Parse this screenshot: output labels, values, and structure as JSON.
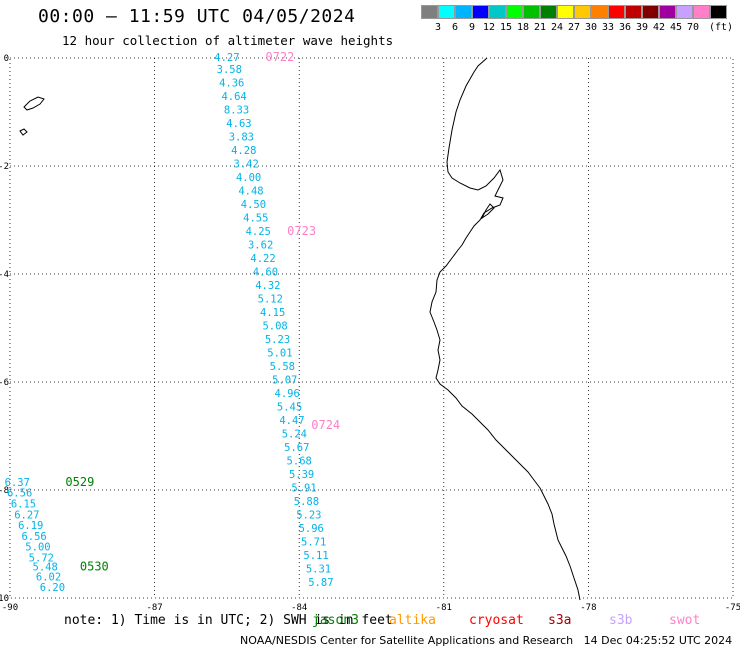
{
  "header": {
    "title": "00:00 – 11:59 UTC 04/05/2024",
    "subtitle": "12 hour collection of altimeter wave heights"
  },
  "legend": {
    "colors": [
      "#7f7f7f",
      "#00ffff",
      "#00b4ff",
      "#0000ff",
      "#00c8c8",
      "#00ff00",
      "#00c000",
      "#008000",
      "#ffff00",
      "#ffc800",
      "#ff8000",
      "#ff0000",
      "#c00000",
      "#800000",
      "#a000a0",
      "#c8a0ff",
      "#ff80c8",
      "#000000"
    ],
    "labels": [
      "3",
      "6",
      "9",
      "12",
      "15",
      "18",
      "21",
      "24",
      "27",
      "30",
      "33",
      "36",
      "39",
      "42",
      "45",
      "70"
    ],
    "unit": "(ft)"
  },
  "axes": {
    "lon_labels": [
      "-90",
      "-87",
      "-84",
      "-81",
      "-78",
      "-75"
    ],
    "lat_labels": [
      "0",
      "-2",
      "-4",
      "-6",
      "-8",
      "-10"
    ],
    "lon_values": [
      -90,
      -87,
      -84,
      -81,
      -78,
      -75
    ],
    "lat_values": [
      0,
      -2,
      -4,
      -6,
      -8,
      -10
    ]
  },
  "map_data": {
    "extent": {
      "lon": [
        -90,
        -75
      ],
      "lat": [
        -10,
        0
      ]
    },
    "tracks": [
      {
        "label": "0529",
        "label_lon": -88.85,
        "label_lat": -7.85,
        "label_color": "#008000",
        "points": [
          {
            "lon": -89.85,
            "lat": -7.85,
            "swh": "6.37"
          },
          {
            "lon": -89.8,
            "lat": -8.05,
            "swh": "6.56"
          },
          {
            "lon": -89.72,
            "lat": -8.25,
            "swh": "6.15"
          },
          {
            "lon": -89.65,
            "lat": -8.45,
            "swh": "6.27"
          },
          {
            "lon": -89.57,
            "lat": -8.65,
            "swh": "6.19"
          },
          {
            "lon": -89.5,
            "lat": -8.85,
            "swh": "6.56"
          },
          {
            "lon": -89.42,
            "lat": -9.05,
            "swh": "5.00"
          },
          {
            "lon": -89.35,
            "lat": -9.25,
            "swh": "5.72"
          },
          {
            "lon": -89.27,
            "lat": -9.42,
            "swh": "5.48"
          },
          {
            "lon": -89.2,
            "lat": -9.6,
            "swh": "6.02"
          },
          {
            "lon": -89.12,
            "lat": -9.8,
            "swh": "6.20"
          }
        ]
      },
      {
        "label": "0530",
        "label_lon": -88.55,
        "label_lat": -9.42,
        "label_color": "#008000",
        "points": []
      },
      {
        "label": "0722",
        "label_lon": -84.7,
        "label_lat": 0.02,
        "label_color": "#ff80c8",
        "points": [
          {
            "lon": -85.5,
            "lat": 0.02,
            "swh": "4.27"
          },
          {
            "lon": -85.45,
            "lat": -0.2,
            "swh": "3.58"
          },
          {
            "lon": -85.4,
            "lat": -0.45,
            "swh": "4.36"
          },
          {
            "lon": -85.35,
            "lat": -0.7,
            "swh": "4.64"
          },
          {
            "lon": -85.3,
            "lat": -0.95,
            "swh": "8.33"
          },
          {
            "lon": -85.25,
            "lat": -1.2,
            "swh": "4.63"
          },
          {
            "lon": -85.2,
            "lat": -1.45,
            "swh": "3.83"
          },
          {
            "lon": -85.15,
            "lat": -1.7,
            "swh": "4.28"
          },
          {
            "lon": -85.1,
            "lat": -1.95,
            "swh": "3.42"
          },
          {
            "lon": -85.05,
            "lat": -2.2,
            "swh": "4.00"
          },
          {
            "lon": -85.0,
            "lat": -2.45,
            "swh": "4.48"
          },
          {
            "lon": -84.95,
            "lat": -2.7,
            "swh": "4.50"
          },
          {
            "lon": -84.9,
            "lat": -2.95,
            "swh": "4.55"
          },
          {
            "lon": -84.85,
            "lat": -3.2,
            "swh": "4.25"
          },
          {
            "lon": -84.8,
            "lat": -3.45,
            "swh": "3.62"
          },
          {
            "lon": -84.75,
            "lat": -3.7,
            "swh": "4.22"
          },
          {
            "lon": -84.7,
            "lat": -3.95,
            "swh": "4.60"
          },
          {
            "lon": -84.65,
            "lat": -4.2,
            "swh": "4.32"
          },
          {
            "lon": -84.6,
            "lat": -4.45,
            "swh": "5.12"
          },
          {
            "lon": -84.55,
            "lat": -4.7,
            "swh": "4.15"
          },
          {
            "lon": -84.5,
            "lat": -4.95,
            "swh": "5.08"
          },
          {
            "lon": -84.45,
            "lat": -5.2,
            "swh": "5.23"
          },
          {
            "lon": -84.4,
            "lat": -5.45,
            "swh": "5.01"
          },
          {
            "lon": -84.35,
            "lat": -5.7,
            "swh": "5.58"
          },
          {
            "lon": -84.3,
            "lat": -5.95,
            "swh": "5.07"
          },
          {
            "lon": -84.25,
            "lat": -6.2,
            "swh": "4.96"
          },
          {
            "lon": -84.2,
            "lat": -6.45,
            "swh": "5.45"
          },
          {
            "lon": -84.15,
            "lat": -6.7,
            "swh": "4.47"
          },
          {
            "lon": -84.1,
            "lat": -6.95,
            "swh": "5.24"
          },
          {
            "lon": -84.05,
            "lat": -7.2,
            "swh": "5.67"
          },
          {
            "lon": -84.0,
            "lat": -7.45,
            "swh": "5.68"
          },
          {
            "lon": -83.95,
            "lat": -7.7,
            "swh": "5.39"
          },
          {
            "lon": -83.9,
            "lat": -7.95,
            "swh": "5.91"
          },
          {
            "lon": -83.85,
            "lat": -8.2,
            "swh": "5.88"
          },
          {
            "lon": -83.8,
            "lat": -8.45,
            "swh": "5.23"
          },
          {
            "lon": -83.75,
            "lat": -8.7,
            "swh": "5.96"
          },
          {
            "lon": -83.7,
            "lat": -8.95,
            "swh": "5.71"
          },
          {
            "lon": -83.65,
            "lat": -9.2,
            "swh": "5.11"
          },
          {
            "lon": -83.6,
            "lat": -9.45,
            "swh": "5.31"
          },
          {
            "lon": -83.55,
            "lat": -9.7,
            "swh": "5.87"
          }
        ]
      },
      {
        "label": "0723",
        "label_lon": -84.25,
        "label_lat": -3.2,
        "label_color": "#ff80c8",
        "points": []
      },
      {
        "label": "0724",
        "label_lon": -83.75,
        "label_lat": -6.8,
        "label_color": "#ff80c8",
        "points": []
      }
    ],
    "swh_color": "#00b4e8"
  },
  "footer": {
    "note": "note: 1) Time is in UTC; 2) SWH is in feet",
    "satellites": [
      {
        "name": "jason3",
        "color": "#008000"
      },
      {
        "name": "altika",
        "color": "#ff9900"
      },
      {
        "name": "cryosat",
        "color": "#ff0000"
      },
      {
        "name": "s3a",
        "color": "#a00000"
      },
      {
        "name": "s3b",
        "color": "#c8a0ff"
      },
      {
        "name": "swot",
        "color": "#ff80c8"
      }
    ],
    "credit": "NOAA/NESDIS Center for Satellite Applications and Research",
    "timestamp": "14 Dec 04:25:52 UTC 2024"
  }
}
